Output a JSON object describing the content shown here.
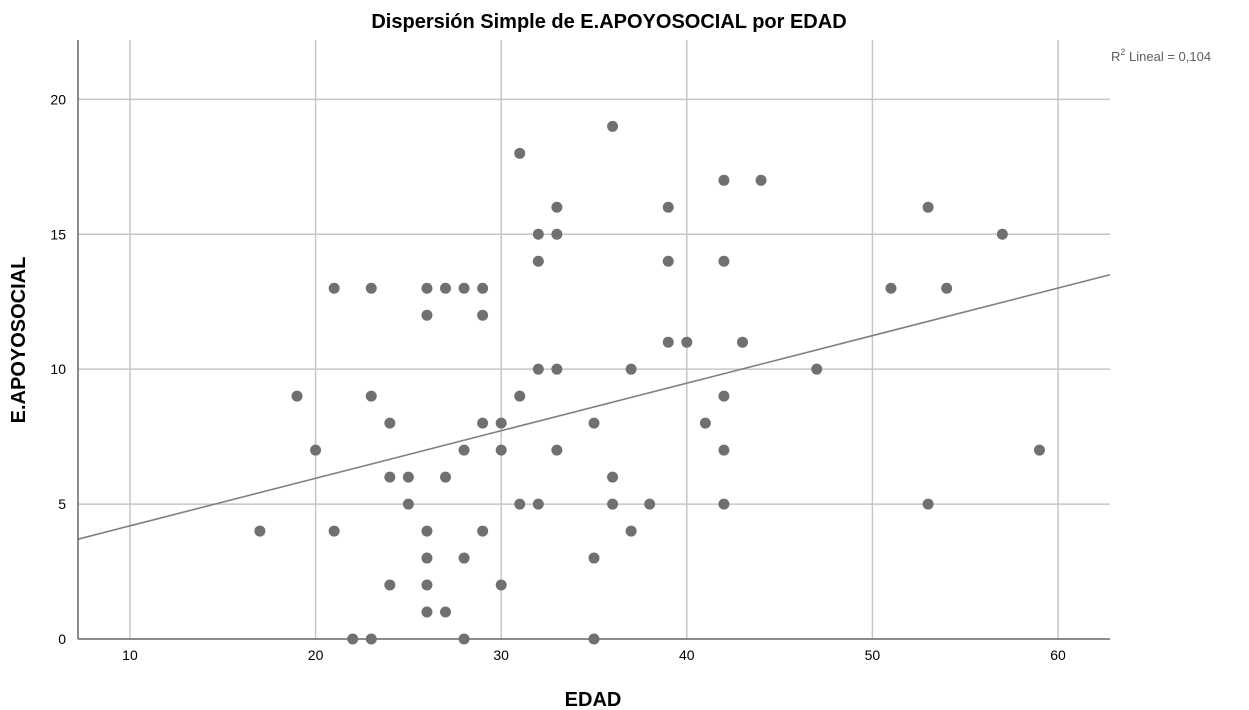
{
  "chart_data": {
    "type": "scatter",
    "title": "Dispersión Simple de E.APOYOSOCIAL por EDAD",
    "xlabel": "EDAD",
    "ylabel": "E.APOYOSOCIAL",
    "xlim": [
      7.2,
      62.8
    ],
    "ylim": [
      0,
      22.2
    ],
    "x_ticks": [
      10,
      20,
      30,
      40,
      50,
      60
    ],
    "y_ticks": [
      0,
      5,
      10,
      15,
      20
    ],
    "grid": true,
    "colors": {
      "points": "#707070",
      "fit_line": "#808080",
      "grid": "#c6c6c6",
      "axis": "#666666"
    },
    "annotation": {
      "prefix": "R",
      "superscript": "2",
      "text": " Lineal = 0,104"
    },
    "fit_line": {
      "x": [
        7.2,
        62.8
      ],
      "y": [
        3.7,
        13.5
      ]
    },
    "points": [
      [
        17,
        4
      ],
      [
        19,
        9
      ],
      [
        20,
        7
      ],
      [
        21,
        13
      ],
      [
        21,
        4
      ],
      [
        22,
        0
      ],
      [
        23,
        13
      ],
      [
        23,
        9
      ],
      [
        23,
        0
      ],
      [
        24,
        8
      ],
      [
        24,
        6
      ],
      [
        24,
        2
      ],
      [
        25,
        6
      ],
      [
        25,
        5
      ],
      [
        26,
        13
      ],
      [
        26,
        12
      ],
      [
        26,
        4
      ],
      [
        26,
        3
      ],
      [
        26,
        2
      ],
      [
        26,
        1
      ],
      [
        27,
        13
      ],
      [
        27,
        6
      ],
      [
        27,
        1
      ],
      [
        28,
        13
      ],
      [
        28,
        7
      ],
      [
        28,
        3
      ],
      [
        28,
        0
      ],
      [
        29,
        13
      ],
      [
        29,
        12
      ],
      [
        29,
        8
      ],
      [
        29,
        4
      ],
      [
        30,
        8
      ],
      [
        30,
        7
      ],
      [
        30,
        2
      ],
      [
        31,
        18
      ],
      [
        31,
        9
      ],
      [
        31,
        5
      ],
      [
        32,
        15
      ],
      [
        32,
        14
      ],
      [
        32,
        10
      ],
      [
        32,
        5
      ],
      [
        33,
        16
      ],
      [
        33,
        15
      ],
      [
        33,
        10
      ],
      [
        33,
        7
      ],
      [
        35,
        8
      ],
      [
        35,
        3
      ],
      [
        35,
        0
      ],
      [
        36,
        19
      ],
      [
        36,
        6
      ],
      [
        36,
        5
      ],
      [
        37,
        10
      ],
      [
        37,
        4
      ],
      [
        38,
        5
      ],
      [
        39,
        16
      ],
      [
        39,
        14
      ],
      [
        39,
        11
      ],
      [
        40,
        11
      ],
      [
        41,
        8
      ],
      [
        42,
        17
      ],
      [
        42,
        14
      ],
      [
        42,
        9
      ],
      [
        42,
        7
      ],
      [
        42,
        5
      ],
      [
        43,
        11
      ],
      [
        44,
        17
      ],
      [
        47,
        10
      ],
      [
        51,
        13
      ],
      [
        53,
        16
      ],
      [
        53,
        5
      ],
      [
        54,
        13
      ],
      [
        57,
        15
      ],
      [
        59,
        7
      ]
    ]
  }
}
